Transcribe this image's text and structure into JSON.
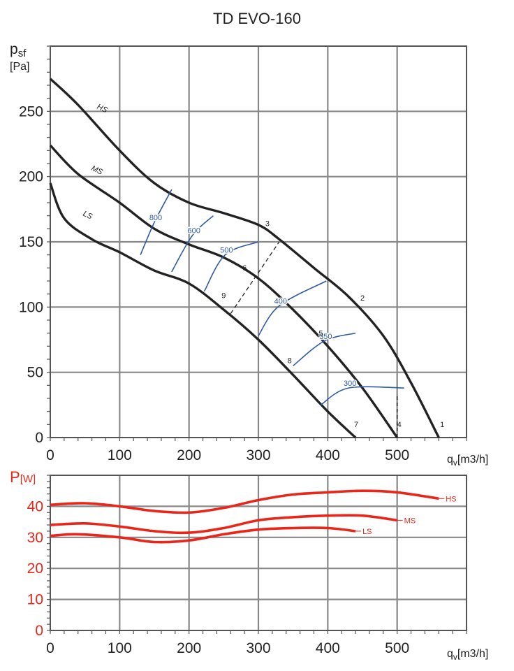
{
  "title": "TD EVO-160",
  "chart_data": [
    {
      "type": "line",
      "ylabel_symbol": "psf",
      "ylabel_unit": "[Pa]",
      "xlabel_symbol": "qv",
      "xlabel_unit": "[m3/h]",
      "xlim": [
        0,
        600
      ],
      "ylim": [
        0,
        300
      ],
      "xticks": [
        "0",
        "100",
        "200",
        "300",
        "400",
        "500"
      ],
      "yticks": [
        "0",
        "50",
        "100",
        "150",
        "200",
        "250"
      ],
      "series": [
        {
          "name": "HS",
          "x": [
            0,
            40,
            100,
            150,
            200,
            250,
            300,
            330,
            380,
            430,
            480,
            520,
            560
          ],
          "y": [
            275,
            255,
            220,
            195,
            180,
            172,
            163,
            152,
            130,
            108,
            78,
            42,
            0
          ]
        },
        {
          "name": "MS",
          "x": [
            0,
            40,
            100,
            150,
            200,
            250,
            300,
            350,
            400,
            450,
            500
          ],
          "y": [
            224,
            202,
            180,
            160,
            148,
            138,
            122,
            98,
            70,
            38,
            0
          ]
        },
        {
          "name": "LS",
          "x": [
            0,
            20,
            60,
            100,
            150,
            200,
            250,
            300,
            350,
            400,
            440
          ],
          "y": [
            195,
            168,
            152,
            142,
            128,
            118,
            98,
            75,
            48,
            20,
            0
          ]
        }
      ],
      "rpm_curves": [
        {
          "label": "800",
          "x": [
            130,
            150,
            175
          ],
          "y": [
            140,
            165,
            190
          ]
        },
        {
          "label": "600",
          "x": [
            175,
            205,
            235
          ],
          "y": [
            127,
            155,
            170
          ]
        },
        {
          "label": "500",
          "x": [
            222,
            252,
            300
          ],
          "y": [
            112,
            140,
            150
          ]
        },
        {
          "label": "400",
          "x": [
            300,
            330,
            398
          ],
          "y": [
            78,
            101,
            120
          ]
        },
        {
          "label": "350",
          "x": [
            350,
            395,
            440
          ],
          "y": [
            55,
            74,
            80
          ]
        },
        {
          "label": "300",
          "x": [
            390,
            430,
            510
          ],
          "y": [
            25,
            38,
            38
          ]
        }
      ],
      "operating_points": [
        {
          "label": "1",
          "x": 565,
          "y": 8
        },
        {
          "label": "2",
          "x": 450,
          "y": 105
        },
        {
          "label": "3",
          "x": 313,
          "y": 162
        },
        {
          "label": "4",
          "x": 503,
          "y": 8
        },
        {
          "label": "5",
          "x": 390,
          "y": 78
        },
        {
          "label": "6",
          "x": 280,
          "y": 128
        },
        {
          "label": "7",
          "x": 441,
          "y": 8
        },
        {
          "label": "8",
          "x": 345,
          "y": 57
        },
        {
          "label": "9",
          "x": 250,
          "y": 107
        }
      ],
      "labels_on_chart": [
        "HS",
        "MS",
        "LS"
      ]
    },
    {
      "type": "line",
      "ylabel": "P[W]",
      "xlabel_symbol": "qv",
      "xlabel_unit": "[m3/h]",
      "xlim": [
        0,
        600
      ],
      "ylim": [
        0,
        50
      ],
      "xticks": [
        "0",
        "100",
        "200",
        "300",
        "400",
        "500"
      ],
      "yticks": [
        "0",
        "10",
        "20",
        "30",
        "40"
      ],
      "series": [
        {
          "name": "HS",
          "x": [
            0,
            50,
            100,
            150,
            200,
            250,
            300,
            350,
            400,
            450,
            500,
            560
          ],
          "y": [
            40.5,
            41,
            40,
            38.5,
            38,
            39.5,
            42,
            43.8,
            44.5,
            45,
            44.5,
            42.5
          ]
        },
        {
          "name": "MS",
          "x": [
            0,
            50,
            100,
            150,
            200,
            250,
            300,
            350,
            400,
            450,
            500
          ],
          "y": [
            34,
            34.5,
            33.5,
            32,
            31.5,
            33,
            35.5,
            36.5,
            37,
            37,
            35.5
          ]
        },
        {
          "name": "LS",
          "x": [
            0,
            40,
            100,
            150,
            200,
            250,
            300,
            350,
            400,
            440
          ],
          "y": [
            30.5,
            31,
            30,
            28.5,
            29,
            31,
            32.5,
            33,
            33,
            32
          ]
        }
      ]
    }
  ]
}
